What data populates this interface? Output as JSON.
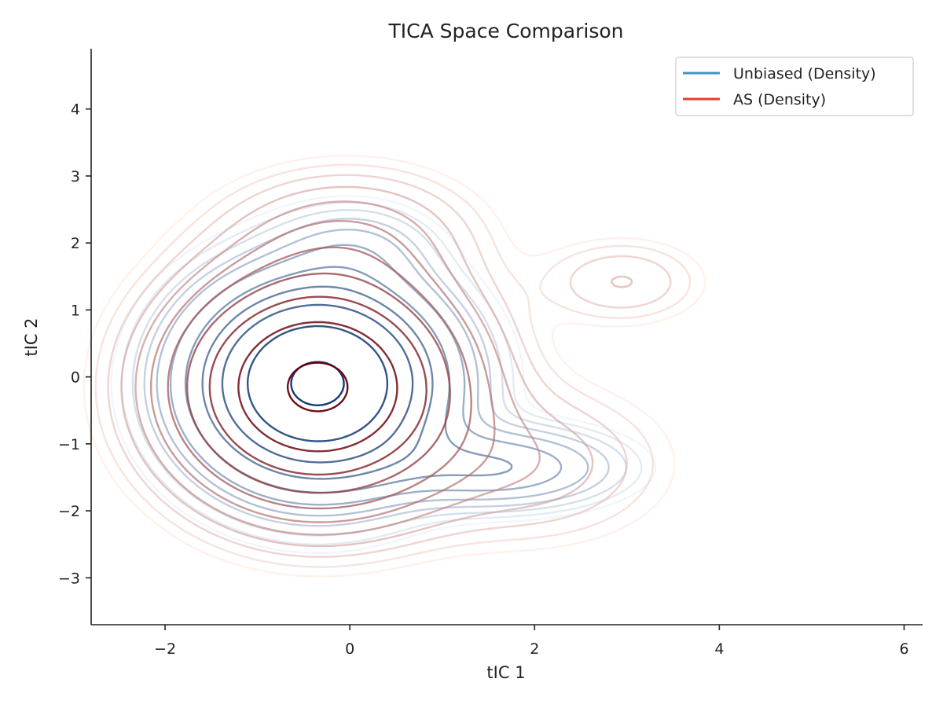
{
  "chart_data": {
    "type": "contour",
    "title": "TICA Space Comparison",
    "xlabel": "tIC 1",
    "ylabel": "tIC 2",
    "xlim": [
      -2.8,
      6.2
    ],
    "ylim": [
      -3.7,
      4.9
    ],
    "xticks": [
      -2,
      0,
      2,
      4,
      6
    ],
    "xtick_labels": [
      "−2",
      "0",
      "2",
      "4",
      "6"
    ],
    "yticks": [
      -3,
      -2,
      -1,
      0,
      1,
      2,
      3,
      4
    ],
    "ytick_labels": [
      "−3",
      "−2",
      "−1",
      "0",
      "1",
      "2",
      "3",
      "4"
    ],
    "grid": false,
    "legend_position": "top-right",
    "series": [
      {
        "name": "Unbiased (Density)",
        "color": "#4292c6",
        "kind": "kde-contour",
        "levels": 11,
        "color_ramp": [
          "#deebf7",
          "#08306b"
        ],
        "modes": [
          {
            "x": -0.35,
            "y": -0.1,
            "sx": 0.75,
            "sy": 0.85,
            "weight": 1.0
          },
          {
            "x": 1.6,
            "y": -1.35,
            "sx": 0.75,
            "sy": 0.35,
            "weight": 0.16
          },
          {
            "x": 0.05,
            "y": 1.9,
            "sx": 0.5,
            "sy": 0.4,
            "weight": 0.06
          }
        ]
      },
      {
        "name": "AS (Density)",
        "color": "#ef3b2c",
        "kind": "kde-contour",
        "levels": 11,
        "color_ramp": [
          "#fee0d2",
          "#67000d"
        ],
        "modes": [
          {
            "x": -0.35,
            "y": -0.15,
            "sx": 0.85,
            "sy": 0.95,
            "weight": 1.0
          },
          {
            "x": 2.95,
            "y": 1.42,
            "sx": 0.55,
            "sy": 0.4,
            "weight": 0.045
          },
          {
            "x": 1.9,
            "y": -1.3,
            "sx": 0.9,
            "sy": 0.7,
            "weight": 0.06
          },
          {
            "x": 0.0,
            "y": 2.1,
            "sx": 0.8,
            "sy": 0.6,
            "weight": 0.08
          }
        ]
      }
    ]
  }
}
